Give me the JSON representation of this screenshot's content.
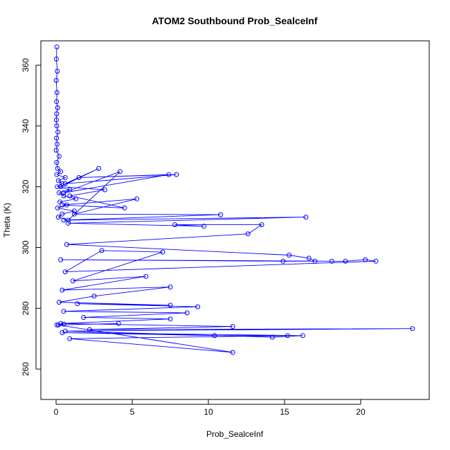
{
  "chart_data": {
    "type": "scatter",
    "title": "ATOM2 Southbound Prob_SealceInf",
    "xlabel": "Prob_SealceInf",
    "ylabel": "Theta (K)",
    "xlim": [
      -1.0,
      24.5
    ],
    "ylim": [
      250,
      368
    ],
    "xticks": [
      0,
      5,
      10,
      15,
      20
    ],
    "yticks": [
      260,
      280,
      300,
      320,
      340,
      360
    ],
    "grid": false,
    "series_color": "#0000ff",
    "marker": "open-circle",
    "connected": true,
    "series": [
      {
        "x": [
          0.05,
          0.02,
          0.08,
          0.01,
          0.06,
          0.03,
          0.1,
          0.04,
          0.02,
          0.05,
          0.12,
          0.03,
          0.07,
          0.01,
          0.2,
          0.04,
          0.1,
          0.3,
          0.05,
          0.6,
          0.15,
          0.4,
          0.08,
          0.9,
          0.2,
          0.5,
          1.3,
          0.25,
          0.7,
          0.1,
          1.2,
          0.4,
          0.15,
          0.8,
          4.2,
          0.5,
          7.4,
          1.5,
          7.9,
          0.6,
          2.8,
          0.3,
          3.2,
          0.9,
          4.5,
          0.4,
          5.3,
          1.2,
          10.8,
          0.5,
          16.4,
          0.8,
          9.7,
          7.8,
          13.5,
          12.6,
          0.7,
          15.3,
          16.6,
          17.0,
          18.1,
          0.3,
          14.9,
          19.0,
          20.3,
          21.0,
          0.6,
          3.0,
          7.0,
          1.1,
          5.9,
          0.4,
          7.5,
          2.5,
          0.2,
          7.5,
          1.4,
          9.3,
          0.5,
          8.6,
          1.8,
          7.5,
          0.3,
          11.6,
          2.2,
          23.4,
          0.6,
          14.2,
          16.2,
          0.4,
          10.4,
          15.2,
          0.9,
          11.6,
          0.15,
          4.1,
          0.05,
          0.5
        ],
        "y": [
          366,
          362,
          358,
          355,
          351,
          348,
          346,
          344,
          342,
          340,
          338,
          336,
          334,
          332,
          330,
          328,
          326,
          325,
          324,
          323,
          322,
          321,
          320,
          319,
          318,
          317,
          316,
          315,
          314,
          313,
          312,
          311,
          310,
          309,
          325,
          318,
          324,
          323,
          324,
          321,
          326,
          320,
          319,
          317,
          313,
          314,
          316,
          311,
          310.8,
          309,
          310,
          308,
          307,
          307.5,
          307.5,
          304.5,
          301,
          297.5,
          296.5,
          295.5,
          295.5,
          296,
          295.5,
          295.5,
          296,
          295.5,
          292,
          299,
          298.5,
          289,
          290.5,
          286,
          287,
          284,
          282,
          281,
          281.5,
          280.5,
          279,
          278.5,
          277,
          276.5,
          275,
          274,
          273,
          273.3,
          272.5,
          270.5,
          271,
          272,
          271,
          271,
          270,
          265.5,
          274.5,
          275,
          274.5,
          274.8
        ]
      }
    ]
  }
}
